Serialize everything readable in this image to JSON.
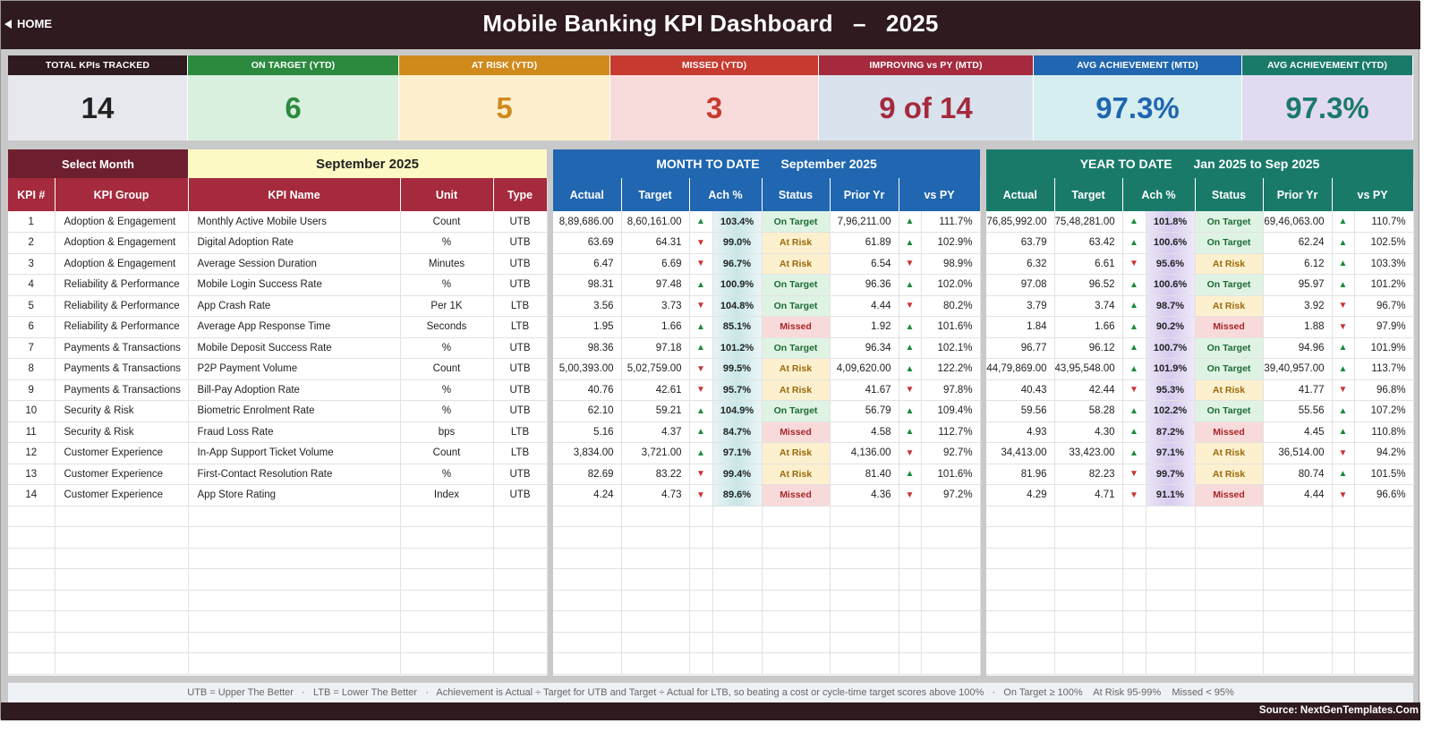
{
  "header": {
    "home_label": "HOME",
    "title": "Mobile Banking KPI Dashboard   –   2025"
  },
  "cards": [
    {
      "label": "TOTAL KPIs TRACKED",
      "value": "14",
      "head_color": "#2e1a1f",
      "bg_color": "#e6e8ee",
      "value_color": "#222222"
    },
    {
      "label": "ON TARGET (YTD)",
      "value": "6",
      "head_color": "#2b8a3e",
      "bg_color": "#d9f0de",
      "value_color": "#2b8a3e"
    },
    {
      "label": "AT RISK (YTD)",
      "value": "5",
      "head_color": "#d08a1c",
      "bg_color": "#fdf0cf",
      "value_color": "#d08a1c"
    },
    {
      "label": "MISSED (YTD)",
      "value": "3",
      "head_color": "#c73a2f",
      "bg_color": "#f8dcdc",
      "value_color": "#c73a2f"
    },
    {
      "label": "IMPROVING vs PY (MTD)",
      "value": "9 of 14",
      "head_color": "#a52a3d",
      "bg_color": "#d9e3ee",
      "value_color": "#a52a3d"
    },
    {
      "label": "AVG ACHIEVEMENT (MTD)",
      "value": "97.3%",
      "head_color": "#2066b0",
      "bg_color": "#d6eef0",
      "value_color": "#2066b0"
    },
    {
      "label": "AVG ACHIEVEMENT (YTD)",
      "value": "97.3%",
      "head_color": "#1a7a6a",
      "bg_color": "#e2daf0",
      "value_color": "#1a7a6a"
    }
  ],
  "selector": {
    "label": "Select Month",
    "value": "September 2025"
  },
  "mtd_header": {
    "title": "MONTH TO DATE",
    "period": "September 2025"
  },
  "ytd_header": {
    "title": "YEAR TO DATE",
    "period": "Jan 2025  to  Sep 2025"
  },
  "left_columns": [
    "KPI #",
    "KPI Group",
    "KPI Name",
    "Unit",
    "Type"
  ],
  "metric_columns": [
    "Actual",
    "Target",
    "Ach %",
    "Status",
    "Prior Yr",
    "vs PY"
  ],
  "kpis": [
    {
      "num": "1",
      "group": "Adoption & Engagement",
      "name": "Monthly Active Mobile Users",
      "unit": "Count",
      "type": "UTB",
      "mtd": {
        "actual": "8,89,686.00",
        "target": "8,60,161.00",
        "ach_dir": "up",
        "ach": "103.4%",
        "status": "On Target",
        "prior": "7,96,211.00",
        "py_dir": "up",
        "vs_py": "111.7%"
      },
      "ytd": {
        "actual": "76,85,992.00",
        "target": "75,48,281.00",
        "ach_dir": "up",
        "ach": "101.8%",
        "status": "On Target",
        "prior": "69,46,063.00",
        "py_dir": "up",
        "vs_py": "110.7%"
      }
    },
    {
      "num": "2",
      "group": "Adoption & Engagement",
      "name": "Digital Adoption Rate",
      "unit": "%",
      "type": "UTB",
      "mtd": {
        "actual": "63.69",
        "target": "64.31",
        "ach_dir": "down",
        "ach": "99.0%",
        "status": "At Risk",
        "prior": "61.89",
        "py_dir": "up",
        "vs_py": "102.9%"
      },
      "ytd": {
        "actual": "63.79",
        "target": "63.42",
        "ach_dir": "up",
        "ach": "100.6%",
        "status": "On Target",
        "prior": "62.24",
        "py_dir": "up",
        "vs_py": "102.5%"
      }
    },
    {
      "num": "3",
      "group": "Adoption & Engagement",
      "name": "Average Session Duration",
      "unit": "Minutes",
      "type": "UTB",
      "mtd": {
        "actual": "6.47",
        "target": "6.69",
        "ach_dir": "down",
        "ach": "96.7%",
        "status": "At Risk",
        "prior": "6.54",
        "py_dir": "down",
        "vs_py": "98.9%"
      },
      "ytd": {
        "actual": "6.32",
        "target": "6.61",
        "ach_dir": "down",
        "ach": "95.6%",
        "status": "At Risk",
        "prior": "6.12",
        "py_dir": "up",
        "vs_py": "103.3%"
      }
    },
    {
      "num": "4",
      "group": "Reliability & Performance",
      "name": "Mobile Login Success Rate",
      "unit": "%",
      "type": "UTB",
      "mtd": {
        "actual": "98.31",
        "target": "97.48",
        "ach_dir": "up",
        "ach": "100.9%",
        "status": "On Target",
        "prior": "96.36",
        "py_dir": "up",
        "vs_py": "102.0%"
      },
      "ytd": {
        "actual": "97.08",
        "target": "96.52",
        "ach_dir": "up",
        "ach": "100.6%",
        "status": "On Target",
        "prior": "95.97",
        "py_dir": "up",
        "vs_py": "101.2%"
      }
    },
    {
      "num": "5",
      "group": "Reliability & Performance",
      "name": "App Crash Rate",
      "unit": "Per 1K",
      "type": "LTB",
      "mtd": {
        "actual": "3.56",
        "target": "3.73",
        "ach_dir": "down",
        "ach": "104.8%",
        "status": "On Target",
        "prior": "4.44",
        "py_dir": "down",
        "vs_py": "80.2%"
      },
      "ytd": {
        "actual": "3.79",
        "target": "3.74",
        "ach_dir": "up",
        "ach": "98.7%",
        "status": "At Risk",
        "prior": "3.92",
        "py_dir": "down",
        "vs_py": "96.7%"
      }
    },
    {
      "num": "6",
      "group": "Reliability & Performance",
      "name": "Average App Response Time",
      "unit": "Seconds",
      "type": "LTB",
      "mtd": {
        "actual": "1.95",
        "target": "1.66",
        "ach_dir": "up",
        "ach": "85.1%",
        "status": "Missed",
        "prior": "1.92",
        "py_dir": "up",
        "vs_py": "101.6%"
      },
      "ytd": {
        "actual": "1.84",
        "target": "1.66",
        "ach_dir": "up",
        "ach": "90.2%",
        "status": "Missed",
        "prior": "1.88",
        "py_dir": "down",
        "vs_py": "97.9%"
      }
    },
    {
      "num": "7",
      "group": "Payments & Transactions",
      "name": "Mobile Deposit Success Rate",
      "unit": "%",
      "type": "UTB",
      "mtd": {
        "actual": "98.36",
        "target": "97.18",
        "ach_dir": "up",
        "ach": "101.2%",
        "status": "On Target",
        "prior": "96.34",
        "py_dir": "up",
        "vs_py": "102.1%"
      },
      "ytd": {
        "actual": "96.77",
        "target": "96.12",
        "ach_dir": "up",
        "ach": "100.7%",
        "status": "On Target",
        "prior": "94.96",
        "py_dir": "up",
        "vs_py": "101.9%"
      }
    },
    {
      "num": "8",
      "group": "Payments & Transactions",
      "name": "P2P Payment Volume",
      "unit": "Count",
      "type": "UTB",
      "mtd": {
        "actual": "5,00,393.00",
        "target": "5,02,759.00",
        "ach_dir": "down",
        "ach": "99.5%",
        "status": "At Risk",
        "prior": "4,09,620.00",
        "py_dir": "up",
        "vs_py": "122.2%"
      },
      "ytd": {
        "actual": "44,79,869.00",
        "target": "43,95,548.00",
        "ach_dir": "up",
        "ach": "101.9%",
        "status": "On Target",
        "prior": "39,40,957.00",
        "py_dir": "up",
        "vs_py": "113.7%"
      }
    },
    {
      "num": "9",
      "group": "Payments & Transactions",
      "name": "Bill-Pay Adoption Rate",
      "unit": "%",
      "type": "UTB",
      "mtd": {
        "actual": "40.76",
        "target": "42.61",
        "ach_dir": "down",
        "ach": "95.7%",
        "status": "At Risk",
        "prior": "41.67",
        "py_dir": "down",
        "vs_py": "97.8%"
      },
      "ytd": {
        "actual": "40.43",
        "target": "42.44",
        "ach_dir": "down",
        "ach": "95.3%",
        "status": "At Risk",
        "prior": "41.77",
        "py_dir": "down",
        "vs_py": "96.8%"
      }
    },
    {
      "num": "10",
      "group": "Security & Risk",
      "name": "Biometric Enrolment Rate",
      "unit": "%",
      "type": "UTB",
      "mtd": {
        "actual": "62.10",
        "target": "59.21",
        "ach_dir": "up",
        "ach": "104.9%",
        "status": "On Target",
        "prior": "56.79",
        "py_dir": "up",
        "vs_py": "109.4%"
      },
      "ytd": {
        "actual": "59.56",
        "target": "58.28",
        "ach_dir": "up",
        "ach": "102.2%",
        "status": "On Target",
        "prior": "55.56",
        "py_dir": "up",
        "vs_py": "107.2%"
      }
    },
    {
      "num": "11",
      "group": "Security & Risk",
      "name": "Fraud Loss Rate",
      "unit": "bps",
      "type": "LTB",
      "mtd": {
        "actual": "5.16",
        "target": "4.37",
        "ach_dir": "up",
        "ach": "84.7%",
        "status": "Missed",
        "prior": "4.58",
        "py_dir": "up",
        "vs_py": "112.7%"
      },
      "ytd": {
        "actual": "4.93",
        "target": "4.30",
        "ach_dir": "up",
        "ach": "87.2%",
        "status": "Missed",
        "prior": "4.45",
        "py_dir": "up",
        "vs_py": "110.8%"
      }
    },
    {
      "num": "12",
      "group": "Customer Experience",
      "name": "In-App Support Ticket Volume",
      "unit": "Count",
      "type": "LTB",
      "mtd": {
        "actual": "3,834.00",
        "target": "3,721.00",
        "ach_dir": "up",
        "ach": "97.1%",
        "status": "At Risk",
        "prior": "4,136.00",
        "py_dir": "down",
        "vs_py": "92.7%"
      },
      "ytd": {
        "actual": "34,413.00",
        "target": "33,423.00",
        "ach_dir": "up",
        "ach": "97.1%",
        "status": "At Risk",
        "prior": "36,514.00",
        "py_dir": "down",
        "vs_py": "94.2%"
      }
    },
    {
      "num": "13",
      "group": "Customer Experience",
      "name": "First-Contact Resolution Rate",
      "unit": "%",
      "type": "UTB",
      "mtd": {
        "actual": "82.69",
        "target": "83.22",
        "ach_dir": "down",
        "ach": "99.4%",
        "status": "At Risk",
        "prior": "81.40",
        "py_dir": "up",
        "vs_py": "101.6%"
      },
      "ytd": {
        "actual": "81.96",
        "target": "82.23",
        "ach_dir": "down",
        "ach": "99.7%",
        "status": "At Risk",
        "prior": "80.74",
        "py_dir": "up",
        "vs_py": "101.5%"
      }
    },
    {
      "num": "14",
      "group": "Customer Experience",
      "name": "App Store Rating",
      "unit": "Index",
      "type": "UTB",
      "mtd": {
        "actual": "4.24",
        "target": "4.73",
        "ach_dir": "down",
        "ach": "89.6%",
        "status": "Missed",
        "prior": "4.36",
        "py_dir": "down",
        "vs_py": "97.2%"
      },
      "ytd": {
        "actual": "4.29",
        "target": "4.71",
        "ach_dir": "down",
        "ach": "91.1%",
        "status": "Missed",
        "prior": "4.44",
        "py_dir": "down",
        "vs_py": "96.6%"
      }
    }
  ],
  "legend_text": "UTB = Upper The Better   ·   LTB = Lower The Better   ·   Achievement is Actual ÷ Target for UTB and Target ÷ Actual for LTB, so beating a cost or cycle-time target scores above 100%   ·   On Target ≥ 100%    At Risk 95-99%    Missed < 95%",
  "footer": {
    "source": "Source: NextGenTemplates.Com"
  }
}
